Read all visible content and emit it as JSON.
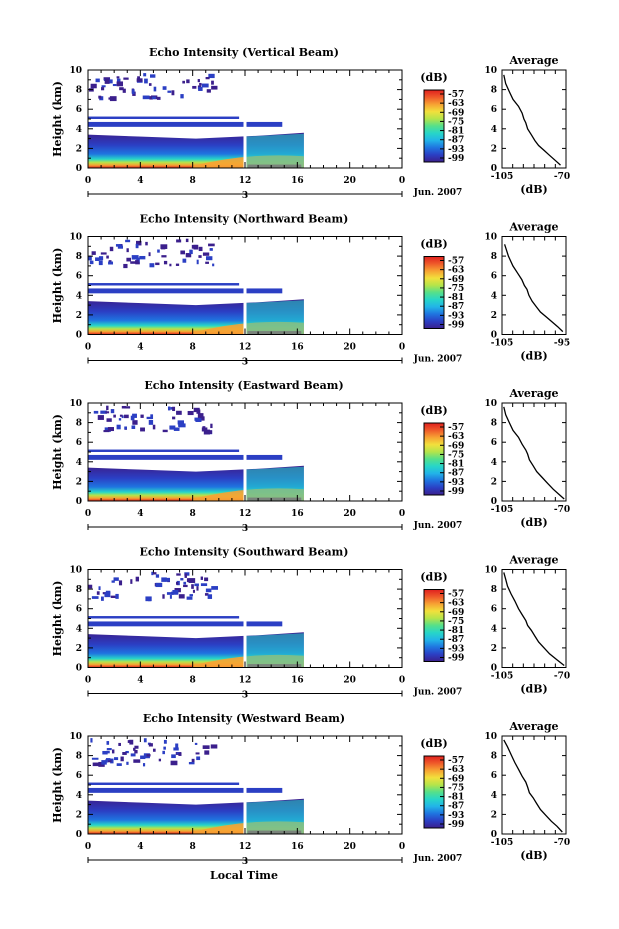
{
  "x_label": "Local Time",
  "x_ticks": [
    "0",
    "4",
    "8",
    "12",
    "16",
    "20",
    "0"
  ],
  "date_day": "3",
  "date_month": "Jun. 2007",
  "y_label": "Height (km)",
  "y_ticks": [
    "0",
    "2",
    "4",
    "6",
    "8",
    "10"
  ],
  "colorbar_unit": "(dB)",
  "colorbar_ticks": [
    "-57",
    "-63",
    "-69",
    "-75",
    "-81",
    "-87",
    "-93",
    "-99"
  ],
  "colors": {
    "scale": [
      "#3b1f8c",
      "#2b3fc4",
      "#1f74e0",
      "#22b4e8",
      "#27d6c8",
      "#55e08a",
      "#b5e44a",
      "#f2e03c",
      "#f7a233",
      "#ef5a2a",
      "#e0201e"
    ]
  },
  "panels": [
    {
      "title": "Echo Intensity (Vertical Beam)",
      "avg_title": "Average",
      "avg_xticks": [
        "-105",
        "-70"
      ],
      "avg_xlabel": "(dB)"
    },
    {
      "title": "Echo Intensity (Northward Beam)",
      "avg_title": "Average",
      "avg_xticks": [
        "-105",
        "-95"
      ],
      "avg_xlabel": "(dB)"
    },
    {
      "title": "Echo Intensity (Eastward Beam)",
      "avg_title": "Average",
      "avg_xticks": [
        "-105",
        "-70"
      ],
      "avg_xlabel": "(dB)"
    },
    {
      "title": "Echo Intensity (Southward Beam)",
      "avg_title": "Average",
      "avg_xticks": [
        "-105",
        "-70"
      ],
      "avg_xlabel": "(dB)"
    },
    {
      "title": "Echo Intensity (Westward Beam)",
      "avg_title": "Average",
      "avg_xticks": [
        "-105",
        "-70"
      ],
      "avg_xlabel": "(dB)"
    }
  ],
  "chart_data": [
    {
      "type": "heatmap",
      "title": "Echo Intensity (Vertical Beam)",
      "xlabel": "",
      "ylabel": "Height (km)",
      "xlim": [
        0,
        24
      ],
      "ylim": [
        0,
        10
      ],
      "colorbar_range": [
        -99,
        -57
      ],
      "data_time_range": [
        0,
        16.5
      ],
      "profile": {
        "type": "line",
        "title": "Average",
        "xlabel": "(dB)",
        "ylabel": "",
        "xlim": [
          -105,
          -70
        ],
        "ylim": [
          0,
          10
        ],
        "x": [
          -73,
          -76,
          -79,
          -82,
          -85,
          -87,
          -89,
          -91,
          -92,
          -93,
          -94,
          -96,
          -99,
          -101,
          -103,
          -104
        ],
        "y": [
          0.3,
          0.8,
          1.3,
          1.8,
          2.3,
          2.8,
          3.4,
          4.0,
          4.6,
          5.0,
          5.6,
          6.3,
          7.0,
          7.8,
          8.6,
          9.5
        ]
      }
    },
    {
      "type": "heatmap",
      "title": "Echo Intensity (Northward Beam)",
      "xlabel": "",
      "ylabel": "Height (km)",
      "xlim": [
        0,
        24
      ],
      "ylim": [
        0,
        10
      ],
      "colorbar_range": [
        -99,
        -57
      ],
      "data_time_range": [
        0,
        16.5
      ],
      "profile": {
        "type": "line",
        "title": "Average",
        "xlabel": "(dB)",
        "ylabel": "",
        "xlim": [
          -105,
          -95
        ],
        "ylim": [
          0,
          10
        ],
        "x": [
          -95.5,
          -96.3,
          -97.2,
          -98.1,
          -99.0,
          -99.6,
          -100.3,
          -100.8,
          -101.1,
          -101.5,
          -101.9,
          -102.6,
          -103.3,
          -104.0,
          -104.6
        ],
        "y": [
          0.3,
          0.8,
          1.3,
          1.8,
          2.3,
          2.8,
          3.4,
          4.0,
          4.6,
          5.0,
          5.6,
          6.3,
          7.0,
          8.0,
          9.2
        ]
      }
    },
    {
      "type": "heatmap",
      "title": "Echo Intensity (Eastward Beam)",
      "xlabel": "",
      "ylabel": "Height (km)",
      "xlim": [
        0,
        24
      ],
      "ylim": [
        0,
        10
      ],
      "colorbar_range": [
        -99,
        -57
      ],
      "data_time_range": [
        0,
        16.5
      ],
      "profile": {
        "type": "line",
        "title": "Average",
        "xlabel": "(dB)",
        "ylabel": "",
        "xlim": [
          -105,
          -70
        ],
        "ylim": [
          0,
          10
        ],
        "x": [
          -71,
          -74,
          -77,
          -80,
          -83,
          -86,
          -88,
          -90,
          -91,
          -92,
          -94,
          -96,
          -99,
          -101,
          -103,
          -104
        ],
        "y": [
          0.2,
          0.7,
          1.2,
          1.8,
          2.4,
          3.0,
          3.6,
          4.2,
          4.8,
          5.2,
          5.8,
          6.5,
          7.2,
          8.0,
          8.8,
          9.6
        ]
      }
    },
    {
      "type": "heatmap",
      "title": "Echo Intensity (Southward Beam)",
      "xlabel": "",
      "ylabel": "Height (km)",
      "xlim": [
        0,
        24
      ],
      "ylim": [
        0,
        10
      ],
      "colorbar_range": [
        -99,
        -57
      ],
      "data_time_range": [
        0,
        16.5
      ],
      "profile": {
        "type": "line",
        "title": "Average",
        "xlabel": "(dB)",
        "ylabel": "",
        "xlim": [
          -105,
          -70
        ],
        "ylim": [
          0,
          10
        ],
        "x": [
          -71,
          -75,
          -79,
          -82,
          -85,
          -87,
          -89,
          -91,
          -92,
          -94,
          -96,
          -98,
          -100,
          -102,
          -103,
          -104
        ],
        "y": [
          0.2,
          0.8,
          1.4,
          2.0,
          2.6,
          3.2,
          3.8,
          4.3,
          4.8,
          5.4,
          6.0,
          6.8,
          7.5,
          8.3,
          9.0,
          9.7
        ]
      }
    },
    {
      "type": "heatmap",
      "title": "Echo Intensity (Westward Beam)",
      "xlabel": "",
      "ylabel": "Height (km)",
      "xlim": [
        0,
        24
      ],
      "ylim": [
        0,
        10
      ],
      "colorbar_range": [
        -99,
        -57
      ],
      "data_time_range": [
        0,
        16.5
      ],
      "profile": {
        "type": "line",
        "title": "Average",
        "xlabel": "(dB)",
        "ylabel": "",
        "xlim": [
          -105,
          -70
        ],
        "ylim": [
          0,
          10
        ],
        "x": [
          -72,
          -75,
          -78,
          -81,
          -84,
          -86,
          -88,
          -90,
          -91,
          -92,
          -94,
          -96,
          -98,
          -100,
          -102,
          -104
        ],
        "y": [
          0.2,
          0.8,
          1.3,
          1.9,
          2.5,
          3.1,
          3.7,
          4.2,
          4.8,
          5.3,
          5.9,
          6.6,
          7.3,
          8.1,
          8.9,
          9.6
        ]
      }
    }
  ]
}
